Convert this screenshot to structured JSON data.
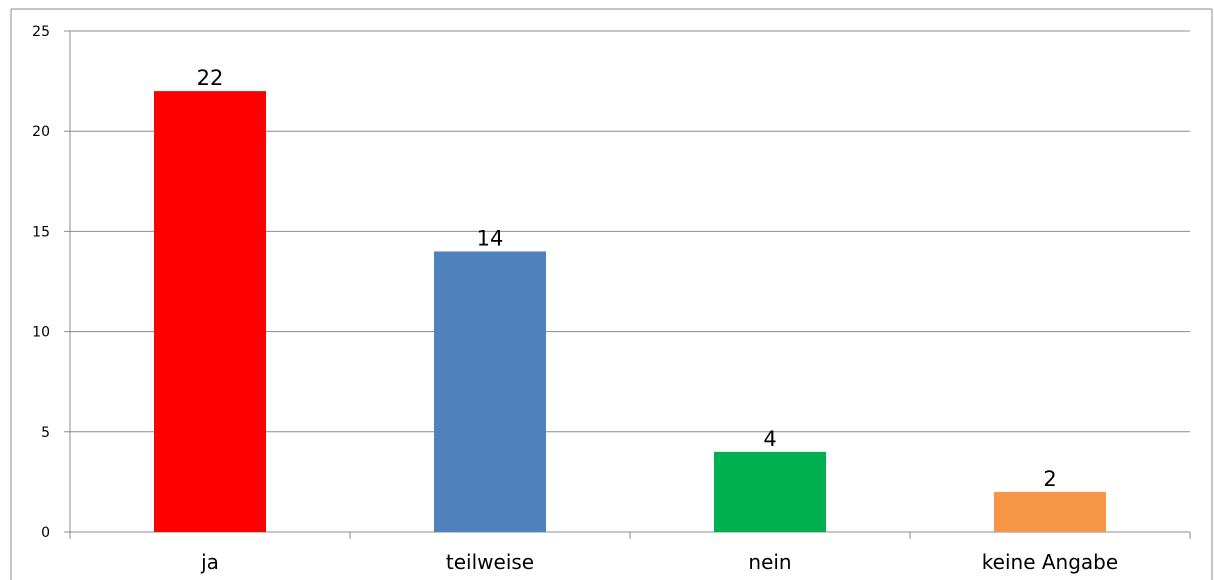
{
  "chart_data": {
    "type": "bar",
    "title": "",
    "xlabel": "",
    "ylabel": "",
    "categories": [
      "ja",
      "teilweise",
      "nein",
      "keine Angabe"
    ],
    "values": [
      22,
      14,
      4,
      2
    ],
    "data_labels": [
      "22",
      "14",
      "4",
      "2"
    ],
    "colors": [
      "#ff0000",
      "#4f81bd",
      "#00b050",
      "#f79646"
    ],
    "ylim": [
      0,
      25
    ],
    "yticks": [
      0,
      5,
      10,
      15,
      20,
      25
    ],
    "ytick_labels": [
      "0",
      "5",
      "10",
      "15",
      "20",
      "25"
    ],
    "grid": true,
    "legend": "none"
  }
}
